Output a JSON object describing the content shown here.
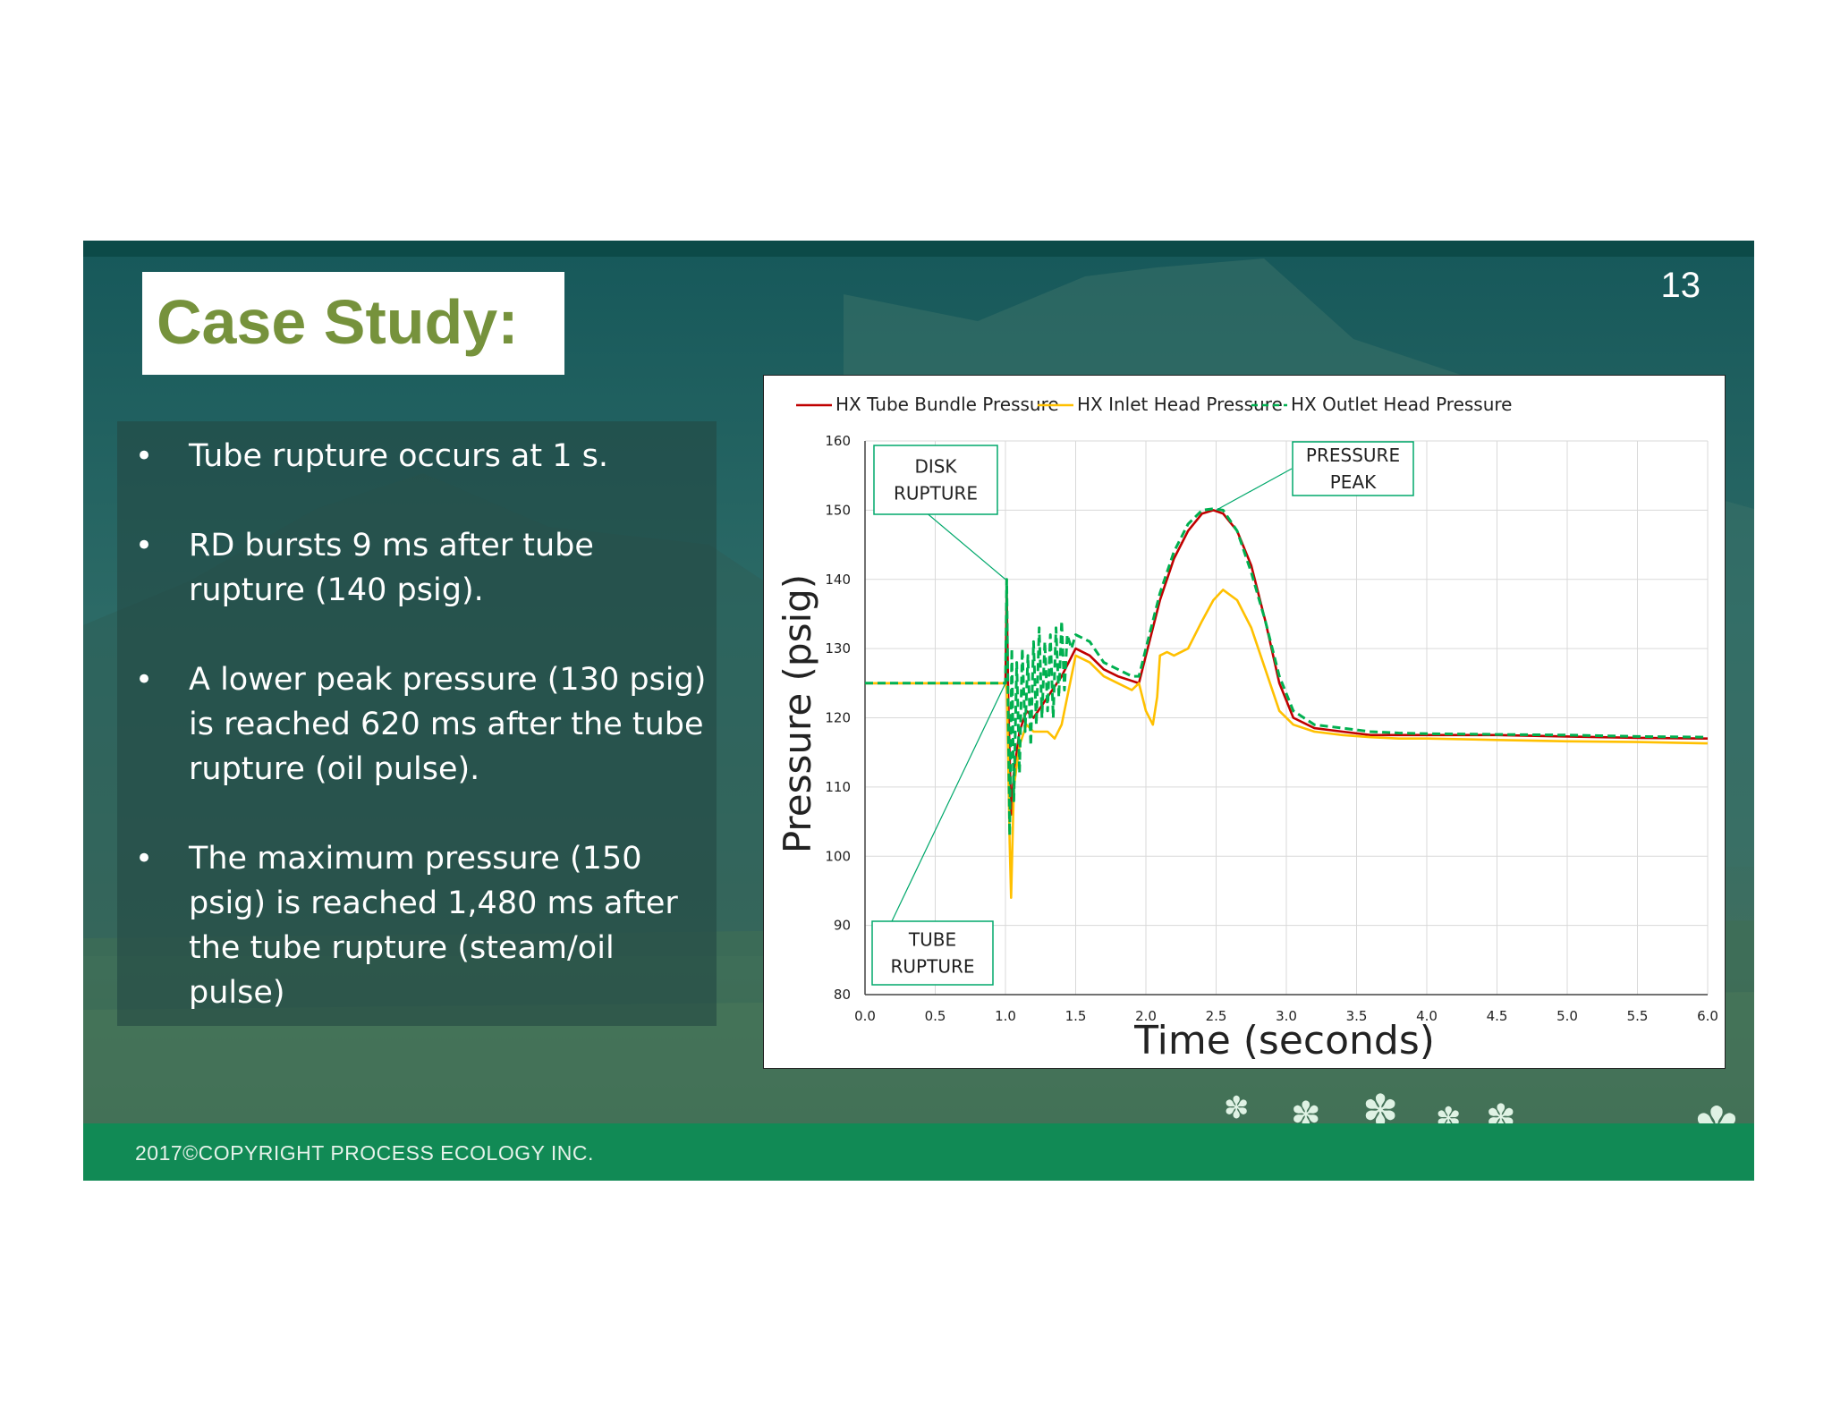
{
  "slide": {
    "page_number": "13",
    "title": "Case Study:",
    "bullets": [
      "Tube rupture occurs at 1 s.",
      "RD bursts 9 ms after tube rupture (140 psig).",
      "A lower peak pressure (130 psig) is reached 620 ms after the tube rupture (oil pulse).",
      "The maximum  pressure (150 psig) is reached 1,480 ms after the tube rupture (steam/oil pulse)"
    ],
    "bullet_symbol": "•",
    "footer": "2017©COPYRIGHT PROCESS ECOLOGY INC."
  },
  "colors": {
    "accent_title": "#76923c",
    "footer_green": "#118a55",
    "series_red": "#c00000",
    "series_yellow": "#ffc000",
    "series_green": "#00b050",
    "annotation_border": "#00a86b"
  },
  "chart_data": {
    "type": "line",
    "xlabel": "Time (seconds)",
    "ylabel": "Pressure (psig)",
    "xlim": [
      0,
      6
    ],
    "ylim": [
      80,
      160
    ],
    "x_ticks": [
      "0.0",
      "0.5",
      "1.0",
      "1.5",
      "2.0",
      "2.5",
      "3.0",
      "3.5",
      "4.0",
      "4.5",
      "5.0",
      "5.5",
      "6.0"
    ],
    "y_ticks": [
      "80",
      "90",
      "100",
      "110",
      "120",
      "130",
      "140",
      "150",
      "160"
    ],
    "grid": true,
    "legend_position": "top",
    "series": [
      {
        "name": "HX Tube Bundle Pressure",
        "color": "#c00000",
        "style": "solid",
        "x": [
          0,
          1.0,
          1.009,
          1.02,
          1.04,
          1.06,
          1.1,
          1.15,
          1.2,
          1.3,
          1.4,
          1.5,
          1.6,
          1.7,
          1.8,
          1.95,
          2.0,
          2.1,
          2.2,
          2.3,
          2.4,
          2.48,
          2.55,
          2.65,
          2.75,
          2.85,
          2.95,
          3.05,
          3.2,
          3.4,
          3.6,
          3.8,
          4.0,
          4.5,
          5.0,
          5.5,
          6.0
        ],
        "y": [
          125,
          125,
          138,
          123,
          106,
          112,
          118,
          121,
          120,
          123,
          126,
          130,
          129,
          127,
          126,
          125,
          129,
          137,
          143,
          147,
          149.5,
          150,
          149.5,
          147,
          142,
          134,
          125,
          120,
          118.5,
          118,
          117.5,
          117.5,
          117.5,
          117.5,
          117.3,
          117.1,
          117.0
        ]
      },
      {
        "name": "HX Inlet Head Pressure",
        "color": "#ffc000",
        "style": "solid",
        "x": [
          0,
          1.0,
          1.01,
          1.03,
          1.04,
          1.06,
          1.1,
          1.15,
          1.2,
          1.3,
          1.35,
          1.4,
          1.5,
          1.6,
          1.7,
          1.8,
          1.9,
          1.95,
          2.0,
          2.05,
          2.08,
          2.1,
          2.15,
          2.2,
          2.3,
          2.4,
          2.48,
          2.55,
          2.65,
          2.75,
          2.85,
          2.95,
          3.05,
          3.2,
          3.4,
          3.6,
          3.8,
          4.0,
          4.5,
          5.0,
          5.5,
          6.0
        ],
        "y": [
          125,
          125,
          124,
          102,
          94,
          110,
          116,
          119,
          118,
          118,
          117,
          119,
          129,
          128,
          126,
          125,
          124,
          125,
          121,
          119,
          123,
          129,
          129.5,
          129,
          130,
          134,
          137,
          138.5,
          137,
          133,
          127,
          121,
          119,
          118,
          117.5,
          117.2,
          117,
          117,
          116.8,
          116.6,
          116.5,
          116.3
        ]
      },
      {
        "name": "HX Outlet Head Pressure",
        "color": "#00b050",
        "style": "dashed",
        "x": [
          0,
          1.0,
          1.009,
          1.02,
          1.03,
          1.045,
          1.06,
          1.08,
          1.1,
          1.12,
          1.14,
          1.16,
          1.18,
          1.2,
          1.22,
          1.24,
          1.26,
          1.28,
          1.3,
          1.32,
          1.34,
          1.36,
          1.38,
          1.4,
          1.42,
          1.44,
          1.47,
          1.5,
          1.55,
          1.6,
          1.7,
          1.8,
          1.9,
          1.95,
          2.0,
          2.1,
          2.2,
          2.3,
          2.4,
          2.48,
          2.55,
          2.65,
          2.75,
          2.85,
          2.95,
          3.05,
          3.2,
          3.4,
          3.6,
          3.8,
          4.0,
          4.5,
          5.0,
          5.5,
          6.0
        ],
        "y": [
          125,
          125,
          140,
          120,
          103,
          130,
          108,
          128,
          112,
          130,
          118,
          129,
          116,
          131,
          119,
          133,
          120,
          131,
          121,
          132,
          120,
          133,
          123,
          134,
          124,
          132,
          130,
          132,
          131.5,
          131,
          128,
          127,
          126,
          126,
          130,
          138,
          144,
          148,
          150,
          150.2,
          150,
          147,
          141,
          134,
          126,
          121,
          119,
          118.5,
          118,
          117.8,
          117.7,
          117.6,
          117.5,
          117.3,
          117.2
        ]
      }
    ],
    "annotations": [
      {
        "text_lines": [
          "DISK",
          "RUPTURE"
        ],
        "points_to": [
          1.0,
          140
        ]
      },
      {
        "text_lines": [
          "PRESSURE",
          "PEAK"
        ],
        "points_to": [
          2.5,
          150
        ]
      },
      {
        "text_lines": [
          "TUBE",
          "RUPTURE"
        ],
        "points_to": [
          1.0,
          125
        ]
      }
    ]
  }
}
